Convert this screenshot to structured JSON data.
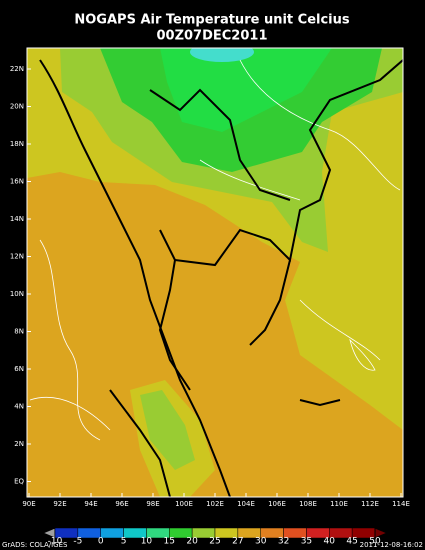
{
  "header": {
    "title": "NOGAPS Air Temperature unit Celcius",
    "subtitle": "00Z07DEC2011"
  },
  "map": {
    "lat_labels": [
      "22N",
      "20N",
      "18N",
      "16N",
      "14N",
      "12N",
      "10N",
      "8N",
      "6N",
      "4N",
      "2N",
      "EQ"
    ],
    "lon_labels": [
      "90E",
      "92E",
      "94E",
      "96E",
      "98E",
      "100E",
      "102E",
      "104E",
      "106E",
      "108E",
      "110E",
      "112E",
      "114E"
    ]
  },
  "colorbar": {
    "labels": [
      "-10",
      "-5",
      "0",
      "5",
      "10",
      "15",
      "20",
      "25",
      "27",
      "30",
      "32",
      "35",
      "40",
      "45",
      "50"
    ]
  },
  "footer": {
    "left": "GrADS: COLA/IGES",
    "right": "2011-12-08-16:02"
  }
}
